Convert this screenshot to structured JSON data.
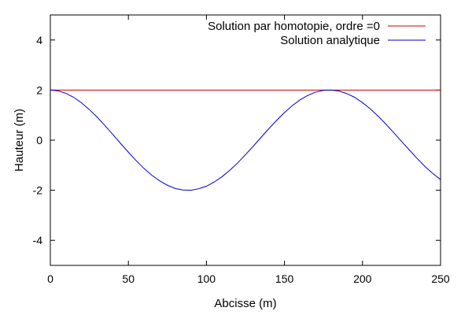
{
  "chart_data": {
    "type": "line",
    "xlabel": "Abcisse (m)",
    "ylabel": "Hauteur (m)",
    "xlim": [
      0,
      250
    ],
    "ylim": [
      -5,
      5
    ],
    "xticks": [
      0,
      50,
      100,
      150,
      200,
      250
    ],
    "yticks": [
      -4,
      -2,
      0,
      2,
      4
    ],
    "grid": false,
    "legend_position": "top-right",
    "series": [
      {
        "name": "Solution par homotopie, ordre =0",
        "color": "#cc0000",
        "x": [
          0,
          250
        ],
        "y": [
          2,
          2
        ]
      },
      {
        "name": "Solution analytique",
        "color": "#0000cc",
        "x": [
          0,
          5,
          10,
          15,
          20,
          25,
          30,
          35,
          40,
          45,
          50,
          55,
          60,
          65,
          70,
          75,
          80,
          85,
          90,
          95,
          100,
          105,
          110,
          115,
          120,
          125,
          130,
          135,
          140,
          145,
          150,
          155,
          160,
          165,
          170,
          175,
          180,
          185,
          190,
          195,
          200,
          205,
          210,
          215,
          220,
          225,
          230,
          235,
          240,
          245,
          250
        ],
        "y": [
          2.0,
          1.97,
          1.87,
          1.71,
          1.49,
          1.22,
          0.92,
          0.58,
          0.23,
          -0.13,
          -0.48,
          -0.82,
          -1.13,
          -1.4,
          -1.62,
          -1.8,
          -1.93,
          -1.99,
          -2.0,
          -1.94,
          -1.84,
          -1.67,
          -1.46,
          -1.2,
          -0.91,
          -0.58,
          -0.24,
          0.11,
          0.46,
          0.79,
          1.1,
          1.38,
          1.61,
          1.79,
          1.92,
          1.99,
          2.0,
          1.96,
          1.86,
          1.71,
          1.5,
          1.25,
          0.96,
          0.64,
          0.3,
          -0.05,
          -0.39,
          -0.73,
          -1.05,
          -1.33,
          -1.57
        ]
      }
    ]
  }
}
